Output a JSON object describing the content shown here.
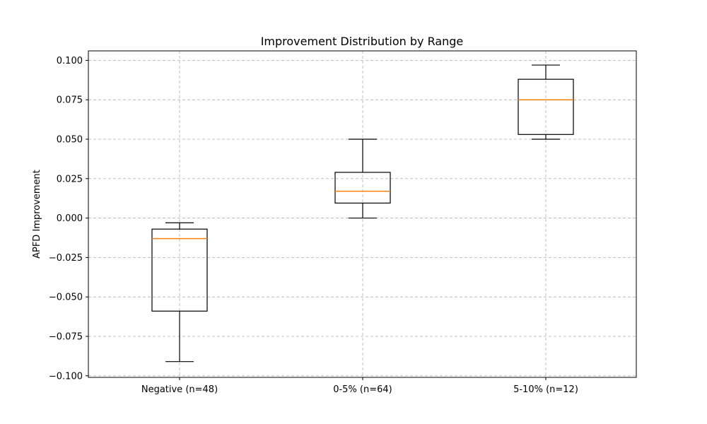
{
  "chart_data": {
    "type": "box",
    "title": "Improvement Distribution by Range",
    "xlabel": "",
    "ylabel": "APFD Improvement",
    "ylim": [
      -0.101,
      0.106
    ],
    "yticks": [
      -0.1,
      -0.075,
      -0.05,
      -0.025,
      0.0,
      0.025,
      0.05,
      0.075,
      0.1
    ],
    "ytick_labels": [
      "−0.100",
      "−0.075",
      "−0.050",
      "−0.025",
      "0.000",
      "0.025",
      "0.050",
      "0.075",
      "0.100"
    ],
    "grid": true,
    "categories": [
      "Negative (n=48)",
      "0-5% (n=64)",
      "5-10% (n=12)"
    ],
    "boxes": [
      {
        "whisker_low": -0.091,
        "q1": -0.059,
        "median": -0.013,
        "q3": -0.007,
        "whisker_high": -0.003
      },
      {
        "whisker_low": 0.0,
        "q1": 0.0095,
        "median": 0.017,
        "q3": 0.029,
        "whisker_high": 0.05
      },
      {
        "whisker_low": 0.05,
        "q1": 0.053,
        "median": 0.075,
        "q3": 0.088,
        "whisker_high": 0.097
      }
    ],
    "colors": {
      "box": "#000000",
      "median": "#ff7f0e",
      "grid": "#b0b0b0"
    }
  }
}
